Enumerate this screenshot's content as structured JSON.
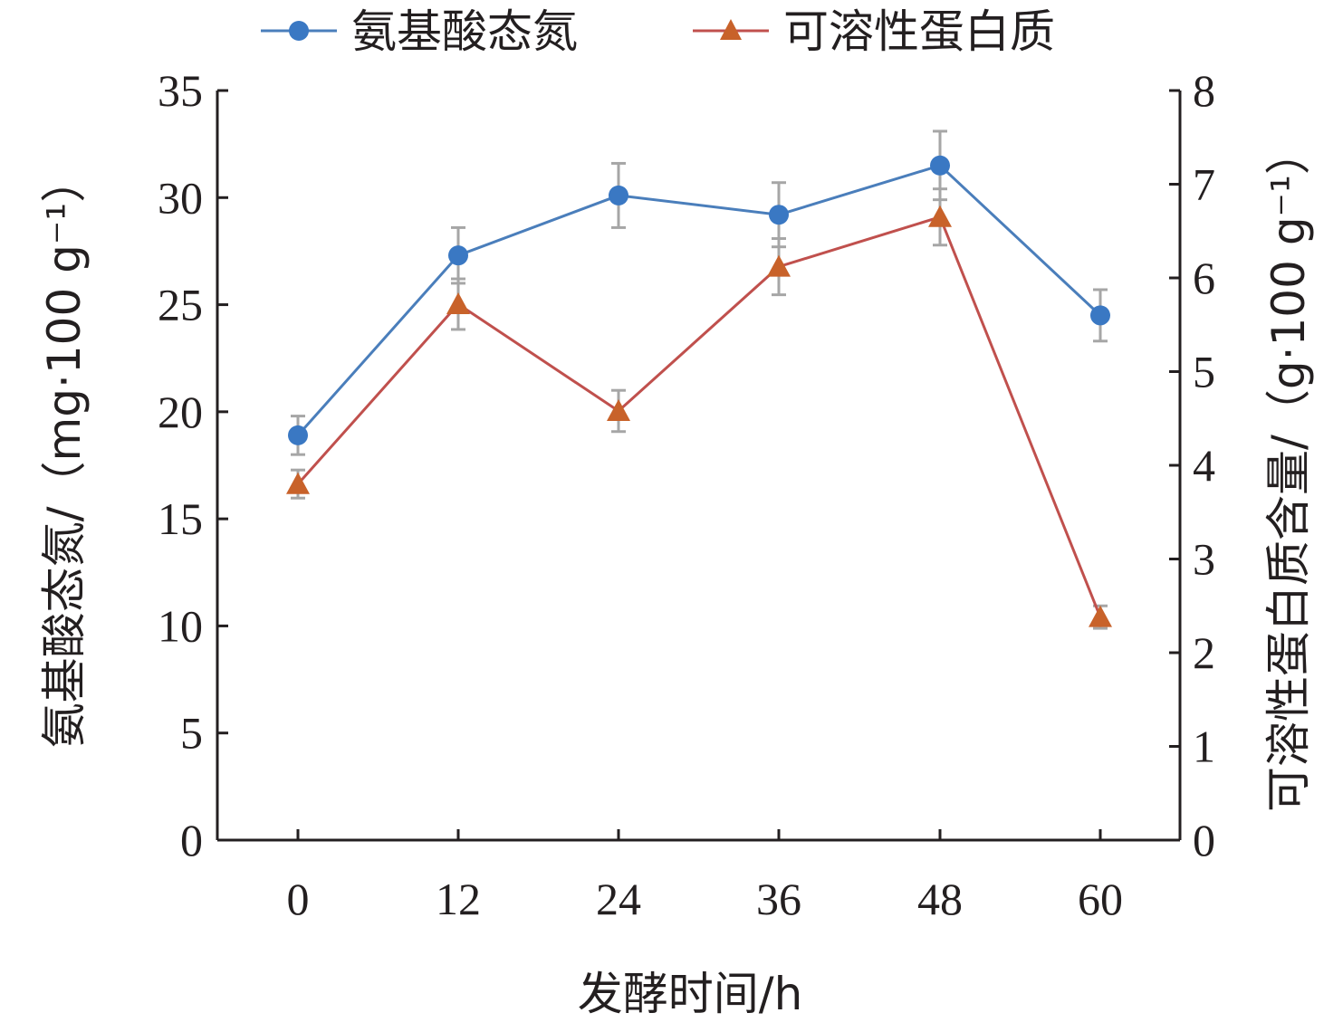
{
  "chart_data": {
    "type": "line",
    "xlabel": "发酵时间/h",
    "ylabel_left": "氨基酸态氮/（mg·100 g⁻¹）",
    "ylabel_right": "可溶性蛋白质含量/（g·100 g⁻¹）",
    "categories": [
      "0",
      "12",
      "24",
      "36",
      "48",
      "60"
    ],
    "x": [
      0,
      12,
      24,
      36,
      48,
      60
    ],
    "y_left_ticks": [
      "0",
      "5",
      "10",
      "15",
      "20",
      "25",
      "30",
      "35"
    ],
    "y_right_ticks": [
      "0",
      "1",
      "2",
      "3",
      "4",
      "5",
      "6",
      "7",
      "8"
    ],
    "ylim_left": [
      0,
      35
    ],
    "ylim_right": [
      0,
      8
    ],
    "legend_position": "top",
    "grid": false,
    "series": [
      {
        "name": "氨基酸态氮",
        "axis": "left",
        "marker": "circle",
        "color": "#4a7ebb",
        "marker_color": "#3a78c3",
        "values": [
          18.9,
          27.3,
          30.1,
          29.2,
          31.5,
          24.5
        ],
        "errors": [
          0.9,
          1.3,
          1.5,
          1.5,
          1.6,
          1.2
        ]
      },
      {
        "name": "可溶性蛋白质",
        "axis": "right",
        "marker": "triangle",
        "color": "#c0504d",
        "marker_color": "#c8622a",
        "values": [
          3.8,
          5.72,
          4.58,
          6.12,
          6.65,
          2.38
        ],
        "errors": [
          0.15,
          0.27,
          0.22,
          0.3,
          0.3,
          0.12
        ]
      }
    ]
  }
}
